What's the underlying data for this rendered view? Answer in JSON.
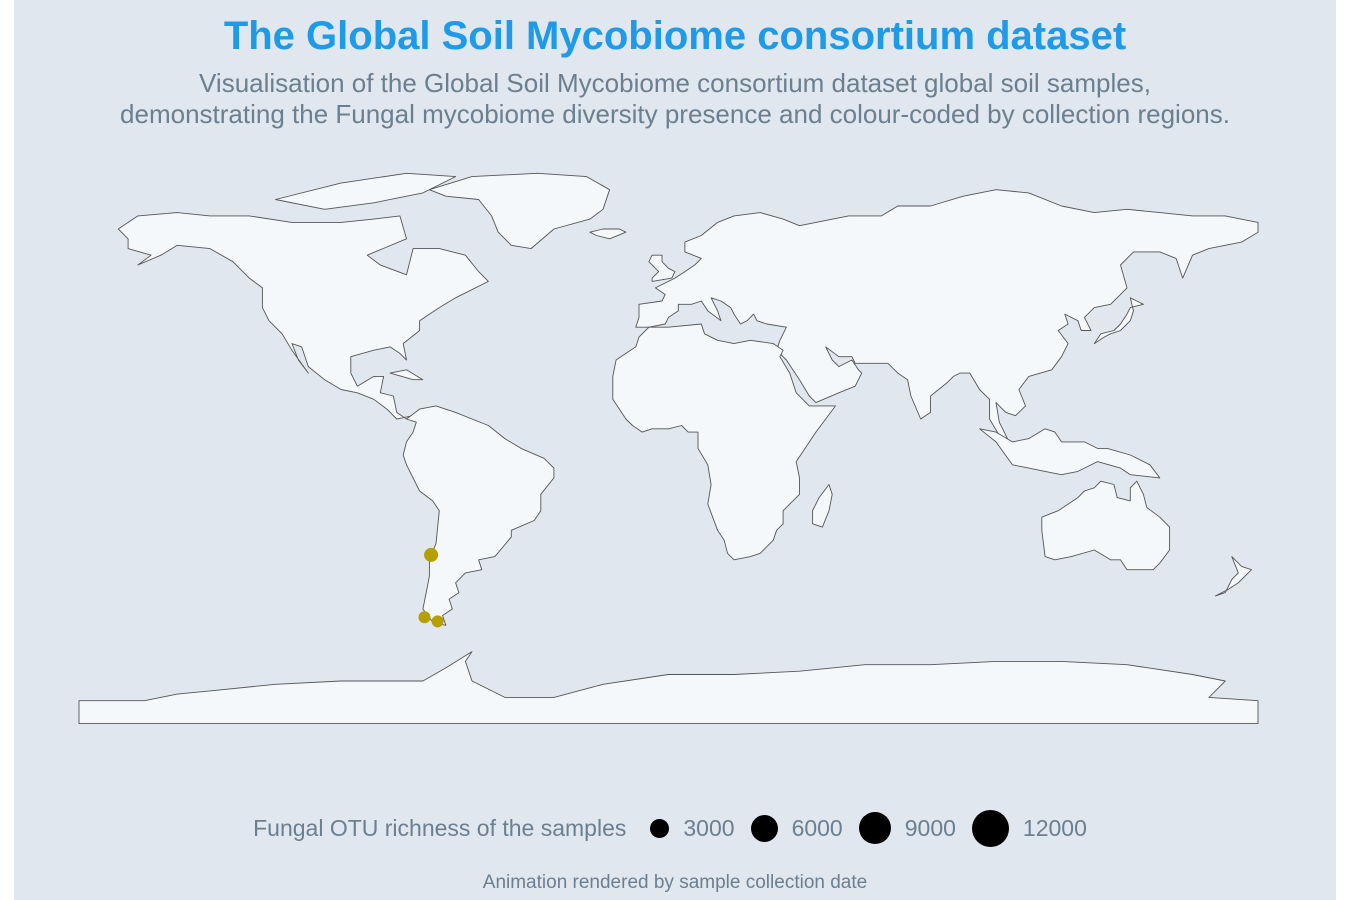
{
  "title": "The Global Soil Mycobiome consortium dataset",
  "subtitle_line1": "Visualisation of the Global Soil Mycobiome consortium dataset global soil samples,",
  "subtitle_line2": "demonstrating the Fungal mycobiome diversity presence and colour-coded by collection regions.",
  "legend": {
    "title": "Fungal OTU richness of the samples",
    "items": [
      {
        "label": "3000",
        "value": 3000
      },
      {
        "label": "6000",
        "value": 6000
      },
      {
        "label": "9000",
        "value": 9000
      },
      {
        "label": "12000",
        "value": 12000
      }
    ]
  },
  "caption": "Animation rendered by sample collection date",
  "colors": {
    "title": "#1e9be8",
    "land": "#f4f8fb",
    "ocean": "#e0e7ee",
    "border": "#555555",
    "sample": "#b5a000"
  },
  "map_data": {
    "projection": "equirectangular",
    "lon_range": [
      -180,
      180
    ],
    "lat_range": [
      -90,
      84
    ],
    "samples": [
      {
        "lon": -72.5,
        "lat": -33.5,
        "region": "South America"
      },
      {
        "lon": -74.5,
        "lat": -52.5,
        "region": "South America"
      },
      {
        "lon": -70.5,
        "lat": -53.8,
        "region": "South America"
      }
    ]
  }
}
